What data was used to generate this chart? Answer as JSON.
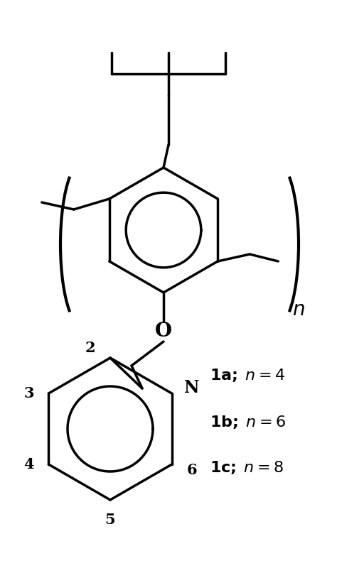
{
  "background_color": "#ffffff",
  "line_color": "#000000",
  "line_width": 2.5,
  "label_fontsize": 15,
  "figsize": [
    4.74,
    8.14
  ],
  "dpi": 100
}
